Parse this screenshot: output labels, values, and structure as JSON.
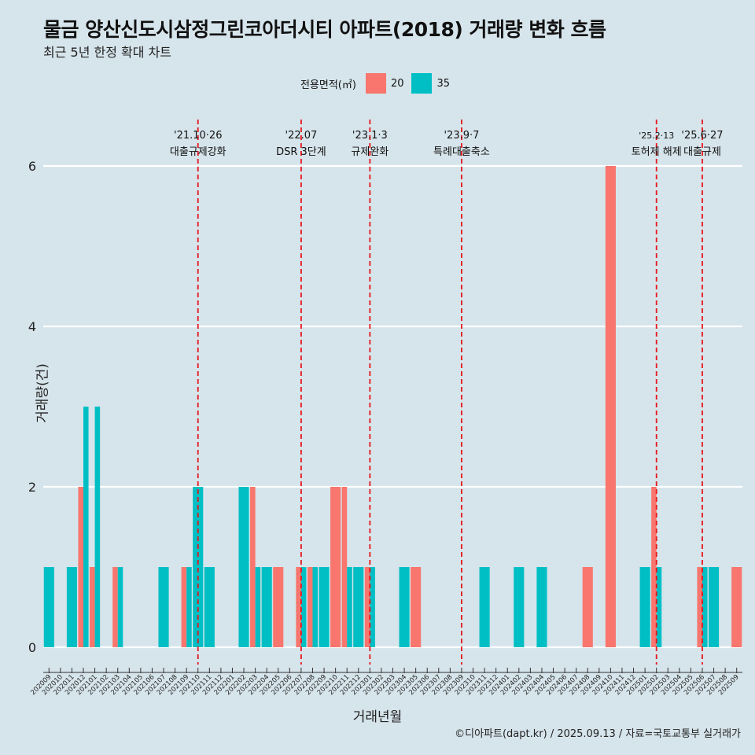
{
  "title": "물금 양산신도시삼정그린코아더시티 아파트(2018) 거래량 변화 흐름",
  "subtitle": "최근 5년 한정 확대 차트",
  "caption": "©디아파트(dapt.kr) / 2025.09.13 / 자료=국토교통부 실거래가",
  "legend": {
    "title": "전용면적(㎡)",
    "items": [
      {
        "label": "20",
        "color": "#f8766d"
      },
      {
        "label": "35",
        "color": "#00bfc4"
      }
    ]
  },
  "chart_data": {
    "type": "bar",
    "xlabel": "거래년월",
    "ylabel": "거래량(건)",
    "ylim": [
      0,
      6.6
    ],
    "yticks": [
      0,
      2,
      4,
      6
    ],
    "grid": "horizontal",
    "legend_position": "top",
    "categories": [
      "202009",
      "202010",
      "202011",
      "202012",
      "202101",
      "202102",
      "202103",
      "202104",
      "202105",
      "202106",
      "202107",
      "202108",
      "202109",
      "202110",
      "202111",
      "202112",
      "202201",
      "202202",
      "202203",
      "202204",
      "202205",
      "202206",
      "202207",
      "202208",
      "202209",
      "202210",
      "202211",
      "202212",
      "202301",
      "202302",
      "202303",
      "202304",
      "202305",
      "202306",
      "202307",
      "202308",
      "202309",
      "202310",
      "202311",
      "202312",
      "202401",
      "202402",
      "202403",
      "202404",
      "202405",
      "202406",
      "202407",
      "202408",
      "202409",
      "202410",
      "202411",
      "202412",
      "202501",
      "202502",
      "202503",
      "202504",
      "202505",
      "202506",
      "202507",
      "202508",
      "202509"
    ],
    "series": [
      {
        "name": "20",
        "color": "#f8766d",
        "values": [
          0,
          0,
          0,
          2,
          1,
          0,
          1,
          0,
          0,
          0,
          0,
          0,
          1,
          0,
          0,
          0,
          0,
          0,
          2,
          0,
          1,
          0,
          1,
          1,
          0,
          2,
          2,
          0,
          1,
          0,
          0,
          0,
          1,
          0,
          0,
          0,
          0,
          0,
          0,
          0,
          0,
          0,
          0,
          0,
          0,
          0,
          0,
          1,
          0,
          6,
          0,
          0,
          0,
          2,
          0,
          0,
          0,
          1,
          0,
          0,
          1
        ]
      },
      {
        "name": "35",
        "color": "#00bfc4",
        "values": [
          1,
          0,
          1,
          3,
          3,
          0,
          1,
          0,
          0,
          0,
          1,
          0,
          1,
          2,
          1,
          0,
          0,
          2,
          1,
          1,
          0,
          0,
          1,
          1,
          1,
          0,
          1,
          1,
          1,
          0,
          0,
          1,
          0,
          0,
          0,
          0,
          0,
          0,
          1,
          0,
          0,
          1,
          0,
          1,
          0,
          0,
          0,
          0,
          0,
          0,
          0,
          0,
          1,
          1,
          0,
          0,
          0,
          1,
          1,
          0,
          0
        ]
      }
    ],
    "events": [
      {
        "month": "202110",
        "date": "'21.10·26",
        "label": "대출규제강화"
      },
      {
        "month": "202207",
        "date": "'22.07",
        "label": "DSR 3단계"
      },
      {
        "month": "202301",
        "date": "'23.1·3",
        "label": "규제완화"
      },
      {
        "month": "202309",
        "date": "'23.9·7",
        "label": "특례대출축소"
      },
      {
        "month": "202502",
        "date": "'25.2·13",
        "label": "토허제 해제"
      },
      {
        "month": "202506",
        "date": "'25.6·27",
        "label": "대출규제"
      }
    ]
  }
}
